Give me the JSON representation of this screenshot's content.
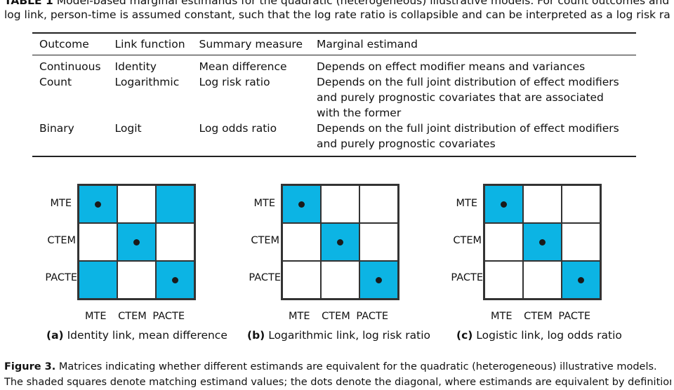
{
  "table_caption": {
    "line1_label": "TABLE 1",
    "line1_text": "Model-based marginal estimands for the quadratic (heterogeneous) illustrative models. For count outcomes and the",
    "line2_text": "log link, person-time is assumed constant, such that the log rate ratio is collapsible and can be interpreted as a log risk ratio."
  },
  "table": {
    "headers": [
      "Outcome",
      "Link function",
      "Summary measure",
      "Marginal estimand"
    ],
    "rows": [
      [
        "Continuous",
        "Identity",
        "Mean difference",
        "Depends on effect modifier means and variances"
      ],
      [
        "Count",
        "Logarithmic",
        "Log risk ratio",
        "Depends on the full joint distribution of effect modifiers and purely prognostic covariates that are associated with the former"
      ],
      [
        "Binary",
        "Logit",
        "Log odds ratio",
        "Depends on the full joint distribution of effect modifiers and purely prognostic covariates"
      ]
    ]
  },
  "figure": {
    "row_labels": [
      "MTE",
      "CTEM",
      "PACTE"
    ],
    "col_labels": [
      "MTE",
      "CTEM",
      "PACTE"
    ],
    "shade_color": "#0cb4e4",
    "panels": [
      {
        "tag": "(a)",
        "caption": "Identity link, mean difference",
        "shaded": [
          [
            1,
            0,
            1
          ],
          [
            0,
            1,
            0
          ],
          [
            1,
            0,
            1
          ]
        ],
        "dots": [
          [
            1,
            0,
            0
          ],
          [
            0,
            1,
            0
          ],
          [
            0,
            0,
            1
          ]
        ]
      },
      {
        "tag": "(b)",
        "caption": "Logarithmic link, log risk ratio",
        "shaded": [
          [
            1,
            0,
            0
          ],
          [
            0,
            1,
            0
          ],
          [
            0,
            0,
            1
          ]
        ],
        "dots": [
          [
            1,
            0,
            0
          ],
          [
            0,
            1,
            0
          ],
          [
            0,
            0,
            1
          ]
        ]
      },
      {
        "tag": "(c)",
        "caption": "Logistic link, log odds ratio",
        "shaded": [
          [
            1,
            0,
            0
          ],
          [
            0,
            1,
            0
          ],
          [
            0,
            0,
            1
          ]
        ],
        "dots": [
          [
            1,
            0,
            0
          ],
          [
            0,
            1,
            0
          ],
          [
            0,
            0,
            1
          ]
        ]
      }
    ],
    "caption_label": "Figure 3.",
    "caption_line1": "Matrices indicating whether different estimands are equivalent for the quadratic (heterogeneous) illustrative models.",
    "caption_line2": "The shaded squares denote matching estimand values; the dots denote the diagonal, where estimands are equivalent by definition."
  }
}
